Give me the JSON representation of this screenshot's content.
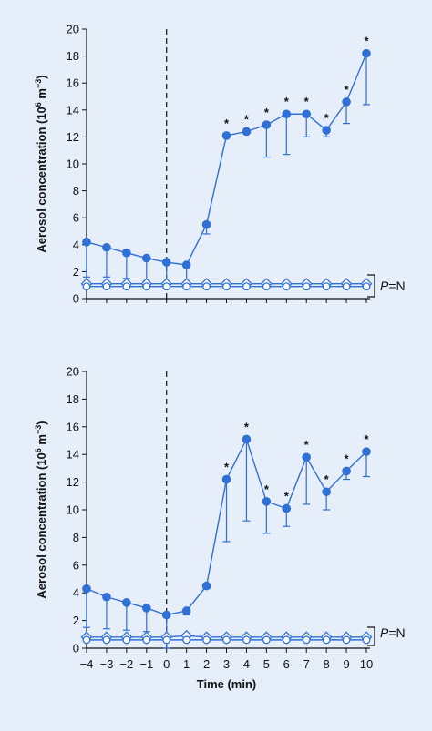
{
  "colors": {
    "series": "#2f6fd6",
    "axis": "#111111",
    "background": "#e6eef9"
  },
  "chart_data": [
    {
      "type": "line",
      "ylabel_main": "Aerosol concentration (10",
      "ylabel_sup": "6",
      "ylabel_mid": " m",
      "ylabel_sup2": "−3",
      "ylabel_end": ")",
      "xlim": [
        -4,
        10
      ],
      "ylim": [
        0,
        20
      ],
      "yticks": [
        "0",
        "2",
        "4",
        "6",
        "8",
        "10",
        "12",
        "14",
        "16",
        "18",
        "20"
      ],
      "vline_x": 0,
      "p_label_italic": "P",
      "p_label_rest": "=N",
      "series": [
        {
          "marker": "filled-circle",
          "x": [
            -4,
            -3,
            -2,
            -1,
            0,
            1,
            2,
            3,
            4,
            5,
            6,
            7,
            8,
            9,
            10
          ],
          "y": [
            4.2,
            3.8,
            3.4,
            3.0,
            2.7,
            2.5,
            5.5,
            12.1,
            12.4,
            12.9,
            13.7,
            13.7,
            12.5,
            14.6,
            18.2
          ],
          "err_lower": [
            1.6,
            1.6,
            1.5,
            1.3,
            1.2,
            1.2,
            4.8,
            12.1,
            12.4,
            10.5,
            10.7,
            12.0,
            12.0,
            13.0,
            14.4
          ],
          "significant": [
            false,
            false,
            false,
            false,
            false,
            false,
            false,
            true,
            true,
            true,
            true,
            true,
            true,
            true,
            true
          ]
        },
        {
          "marker": "open-diamond",
          "x": [
            -4,
            -3,
            -2,
            -1,
            0,
            1,
            2,
            3,
            4,
            5,
            6,
            7,
            8,
            9,
            10
          ],
          "y": [
            1.1,
            1.1,
            1.1,
            1.1,
            1.1,
            1.1,
            1.1,
            1.1,
            1.1,
            1.1,
            1.1,
            1.1,
            1.1,
            1.1,
            1.1
          ]
        },
        {
          "marker": "open-circle",
          "x": [
            -4,
            -3,
            -2,
            -1,
            0,
            1,
            2,
            3,
            4,
            5,
            6,
            7,
            8,
            9,
            10
          ],
          "y": [
            0.9,
            0.9,
            0.9,
            0.9,
            0.9,
            0.9,
            0.9,
            0.9,
            0.9,
            0.9,
            0.9,
            0.9,
            0.9,
            0.9,
            0.9
          ]
        }
      ]
    },
    {
      "type": "line",
      "ylabel_main": "Aerosol concentration (10",
      "ylabel_sup": "6",
      "ylabel_mid": " m",
      "ylabel_sup2": "−3",
      "ylabel_end": ")",
      "xlabel": "Time (min)",
      "xlim": [
        -4,
        10
      ],
      "ylim": [
        0,
        20
      ],
      "yticks": [
        "0",
        "2",
        "4",
        "6",
        "8",
        "10",
        "12",
        "14",
        "16",
        "18",
        "20"
      ],
      "xticks": [
        "−4",
        "−3",
        "−2",
        "−1",
        "0",
        "1",
        "2",
        "3",
        "4",
        "5",
        "6",
        "7",
        "8",
        "9",
        "10"
      ],
      "vline_x": 0,
      "p_label_italic": "P",
      "p_label_rest": "=N",
      "series": [
        {
          "marker": "filled-circle",
          "x": [
            -4,
            -3,
            -2,
            -1,
            0,
            1,
            2,
            3,
            4,
            5,
            6,
            7,
            8,
            9,
            10
          ],
          "y": [
            4.3,
            3.7,
            3.3,
            2.9,
            2.4,
            2.7,
            4.5,
            12.2,
            15.1,
            10.6,
            10.1,
            13.8,
            11.3,
            12.8,
            14.2
          ],
          "err_lower": [
            1.5,
            1.4,
            1.3,
            1.2,
            0.0,
            2.4,
            4.3,
            7.7,
            9.2,
            8.3,
            8.8,
            10.4,
            10.0,
            12.2,
            12.4
          ],
          "significant": [
            false,
            false,
            false,
            false,
            false,
            false,
            false,
            true,
            true,
            true,
            true,
            true,
            true,
            true,
            true
          ]
        },
        {
          "marker": "open-diamond",
          "x": [
            -4,
            -3,
            -2,
            -1,
            0,
            1,
            2,
            3,
            4,
            5,
            6,
            7,
            8,
            9,
            10
          ],
          "y": [
            0.8,
            0.8,
            0.8,
            0.8,
            0.8,
            0.9,
            0.8,
            0.8,
            0.8,
            0.8,
            0.8,
            0.8,
            0.8,
            0.8,
            0.8
          ]
        },
        {
          "marker": "open-circle",
          "x": [
            -4,
            -3,
            -2,
            -1,
            0,
            1,
            2,
            3,
            4,
            5,
            6,
            7,
            8,
            9,
            10
          ],
          "y": [
            0.6,
            0.6,
            0.6,
            0.6,
            0.6,
            0.6,
            0.6,
            0.6,
            0.6,
            0.6,
            0.6,
            0.6,
            0.6,
            0.6,
            0.6
          ]
        }
      ]
    }
  ]
}
